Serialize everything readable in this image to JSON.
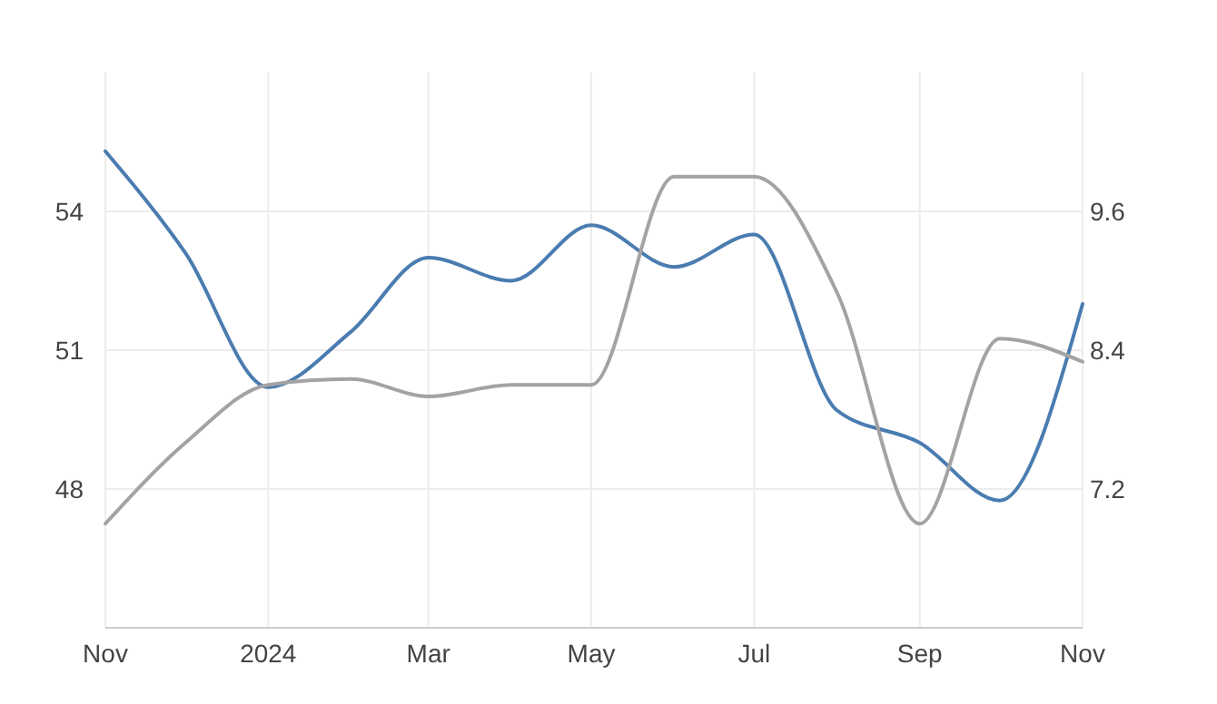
{
  "chart_data": {
    "type": "line",
    "x": [
      "2023-11",
      "2023-12",
      "2024-01",
      "2024-02",
      "2024-03",
      "2024-04",
      "2024-05",
      "2024-06",
      "2024-07",
      "2024-08",
      "2024-09",
      "2024-10",
      "2024-11"
    ],
    "series": [
      {
        "color": "#4a7cb0",
        "values": [
          55.3,
          53.1,
          50.2,
          51.4,
          53.0,
          52.5,
          53.7,
          52.8,
          53.5,
          49.7,
          49.0,
          47.75,
          52.0
        ]
      },
      {
        "color": "#a3a3a3",
        "axis": "y2",
        "values": [
          6.9,
          7.6,
          8.1,
          8.15,
          8.0,
          8.1,
          8.1,
          9.9,
          9.9,
          8.9,
          6.9,
          8.5,
          8.3
        ]
      }
    ],
    "xlim": [
      "2023-11",
      "2024-11"
    ],
    "xticks": [
      {
        "value": "2023-11",
        "label": "Nov"
      },
      {
        "value": "2024-01",
        "label": "2024"
      },
      {
        "value": "2024-03",
        "label": "Mar"
      },
      {
        "value": "2024-05",
        "label": "May"
      },
      {
        "value": "2024-07",
        "label": "Jul"
      },
      {
        "value": "2024-09",
        "label": "Sep"
      },
      {
        "value": "2024-11",
        "label": "Nov"
      }
    ],
    "ylim": [
      45,
      57
    ],
    "yticks": [
      48,
      51,
      54
    ],
    "y2lim": [
      6.0,
      10.8
    ],
    "y2ticks": [
      7.2,
      8.4,
      9.6
    ],
    "grid": true,
    "marker": "none",
    "line_style": "solid"
  }
}
